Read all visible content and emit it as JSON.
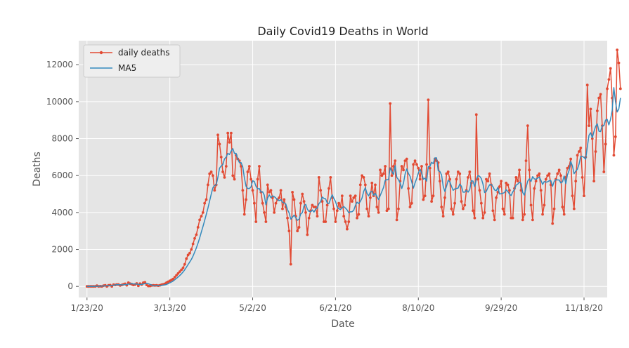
{
  "chart_data": {
    "type": "line",
    "title": "Daily Covid19 Deaths in World",
    "xlabel": "Date",
    "ylabel": "Deaths",
    "x_ticks": [
      "1/23/20",
      "3/13/20",
      "5/2/20",
      "6/21/20",
      "8/10/20",
      "9/29/20",
      "11/18/20"
    ],
    "y_ticks": [
      0,
      2000,
      4000,
      6000,
      8000,
      10000,
      12000
    ],
    "xlim": [
      "1/18/20",
      "12/2/20"
    ],
    "ylim": [
      -600,
      13300
    ],
    "grid": true,
    "legend_position": "top-left",
    "start_date": "1/23/20",
    "series": [
      {
        "name": "daily deaths",
        "color": "#e24a33",
        "marker": "dot",
        "values": [
          0,
          0,
          0,
          0,
          0,
          0,
          40,
          0,
          10,
          0,
          40,
          60,
          0,
          60,
          70,
          0,
          90,
          80,
          100,
          100,
          50,
          80,
          110,
          140,
          60,
          200,
          150,
          120,
          80,
          100,
          160,
          30,
          150,
          100,
          200,
          220,
          80,
          20,
          20,
          50,
          60,
          50,
          60,
          40,
          60,
          90,
          110,
          140,
          200,
          250,
          300,
          350,
          400,
          500,
          600,
          700,
          800,
          900,
          1000,
          1200,
          1500,
          1700,
          1800,
          2000,
          2300,
          2600,
          2800,
          3200,
          3600,
          3800,
          4000,
          4500,
          4700,
          5500,
          6100,
          6200,
          6000,
          5200,
          5500,
          8200,
          7700,
          7000,
          6200,
          5900,
          6500,
          8300,
          7800,
          8300,
          6000,
          5800,
          7100,
          6900,
          6800,
          6500,
          5200,
          3900,
          4700,
          6200,
          6500,
          5800,
          5200,
          4500,
          3500,
          5800,
          6500,
          5100,
          4500,
          4000,
          3500,
          5500,
          5100,
          5200,
          4800,
          4000,
          4500,
          4700,
          4800,
          5200,
          4200,
          4700,
          4300,
          3700,
          3000,
          1200,
          5100,
          4700,
          3800,
          3000,
          3200,
          4500,
          5000,
          4600,
          4000,
          2800,
          3700,
          4100,
          4400,
          4300,
          4300,
          3800,
          5900,
          5200,
          4600,
          3500,
          3500,
          4400,
          5300,
          5900,
          4800,
          4200,
          3500,
          4100,
          4500,
          4300,
          4900,
          3800,
          3500,
          3100,
          3500,
          4900,
          4600,
          4800,
          4900,
          3700,
          3900,
          5500,
          6000,
          5900,
          5500,
          4200,
          3800,
          4800,
          5600,
          4900,
          5500,
          4300,
          4000,
          6300,
          6000,
          6100,
          6500,
          4100,
          4200,
          9900,
          6000,
          6500,
          6800,
          3600,
          4200,
          5700,
          6500,
          6300,
          6800,
          6900,
          5300,
          4300,
          4500,
          6600,
          6800,
          6600,
          6400,
          5800,
          6500,
          4700,
          4900,
          6600,
          10100,
          6400,
          4600,
          4900,
          6900,
          6800,
          6700,
          5700,
          4300,
          3800,
          4800,
          6100,
          6200,
          5800,
          4200,
          3900,
          4500,
          5800,
          6200,
          6100,
          4600,
          4200,
          4400,
          5200,
          5900,
          6200,
          5600,
          4100,
          3700,
          9300,
          5800,
          5200,
          4500,
          3700,
          4000,
          5800,
          5700,
          6100,
          5500,
          4100,
          3600,
          4800,
          5100,
          5400,
          5700,
          4200,
          3900,
          5600,
          5500,
          5200,
          3700,
          3700,
          5300,
          5900,
          5700,
          6300,
          5200,
          3600,
          3900,
          6800,
          8700,
          6300,
          4400,
          3600,
          5300,
          5700,
          6000,
          6100,
          5200,
          3900,
          4400,
          5800,
          6000,
          6100,
          5500,
          3400,
          4200,
          5800,
          6100,
          6300,
          6000,
          4300,
          3900,
          5900,
          6400,
          6500,
          6900,
          4900,
          4200,
          5700,
          7100,
          7300,
          7500,
          5900,
          4900,
          7000,
          10900,
          8700,
          9600,
          8000,
          5700,
          7300,
          9500,
          10200,
          10400,
          8700,
          6200,
          7700,
          10700,
          11200,
          11800,
          10200,
          7100,
          8100,
          12800,
          12100,
          10700
        ]
      },
      {
        "name": "MA5",
        "color": "#348abd",
        "marker": "none",
        "values": [
          0,
          0,
          0,
          0,
          0,
          8,
          10,
          10,
          10,
          18,
          30,
          22,
          34,
          46,
          38,
          56,
          64,
          80,
          94,
          92,
          84,
          84,
          86,
          98,
          104,
          126,
          138,
          146,
          134,
          130,
          130,
          110,
          98,
          108,
          128,
          150,
          158,
          144,
          108,
          78,
          46,
          40,
          48,
          52,
          54,
          60,
          72,
          84,
          108,
          146,
          194,
          240,
          290,
          360,
          432,
          510,
          590,
          680,
          780,
          900,
          1040,
          1180,
          1320,
          1460,
          1640,
          1860,
          2080,
          2340,
          2620,
          2940,
          3240,
          3560,
          3900,
          4240,
          4620,
          5000,
          5340,
          5460,
          5500,
          5900,
          6400,
          6520,
          6600,
          6900,
          7000,
          7200,
          7140,
          7320,
          7460,
          7200,
          7200,
          6900,
          6700,
          6700,
          6480,
          5880,
          5420,
          5300,
          5300,
          5380,
          5720,
          5680,
          5420,
          5280,
          5300,
          5100,
          5120,
          4940,
          4420,
          4780,
          4960,
          4800,
          4900,
          4860,
          4780,
          4700,
          4640,
          4700,
          4560,
          4520,
          4460,
          4160,
          3980,
          3640,
          3740,
          3860,
          3720,
          3580,
          3640,
          3920,
          4000,
          4360,
          4440,
          4180,
          4060,
          4040,
          4140,
          4020,
          4180,
          4240,
          4480,
          4580,
          4840,
          4760,
          4740,
          4520,
          4480,
          4720,
          4960,
          4760,
          4600,
          4300,
          4200,
          4160,
          4260,
          4320,
          4240,
          4140,
          3980,
          4040,
          4040,
          4120,
          4380,
          4560,
          4480,
          4600,
          4780,
          5140,
          5340,
          5040,
          4900,
          5100,
          5160,
          4920,
          5040,
          4860,
          4700,
          4920,
          5140,
          5360,
          5740,
          5780,
          5780,
          6420,
          6220,
          6060,
          6540,
          5900,
          5780,
          5600,
          5300,
          5580,
          6080,
          6360,
          6120,
          5960,
          5660,
          5320,
          5600,
          5840,
          6140,
          6340,
          6140,
          5800,
          5860,
          5700,
          6480,
          6500,
          6720,
          6640,
          6960,
          6960,
          6260,
          6220,
          6040,
          5420,
          5140,
          5420,
          5740,
          5660,
          5420,
          5200,
          5280,
          5300,
          5320,
          5540,
          5420,
          5100,
          5100,
          5200,
          5100,
          5240,
          5720,
          5700,
          5400,
          5800,
          6000,
          5960,
          5840,
          5540,
          5080,
          5140,
          5340,
          5500,
          5520,
          5400,
          5220,
          5180,
          5360,
          5000,
          5020,
          5040,
          5080,
          5240,
          5140,
          5000,
          4920,
          5120,
          5240,
          5480,
          5540,
          5640,
          5580,
          5080,
          4940,
          5340,
          5700,
          5820,
          5680,
          5940,
          5820,
          5800,
          5860,
          5920,
          5740,
          5520,
          5680,
          5640,
          5660,
          5720,
          5720,
          5420,
          5680,
          5780,
          5760,
          5760,
          5600,
          5660,
          5980,
          5560,
          6040,
          6280,
          6760,
          6520,
          6100,
          6240,
          6340,
          6620,
          7040,
          7040,
          6980,
          6880,
          7560,
          8180,
          8320,
          8040,
          8380,
          8660,
          8800,
          8400,
          8380,
          8700,
          8700,
          9000,
          9040,
          8740,
          9040,
          9520,
          10760,
          10000,
          9440,
          9600,
          10200
        ]
      }
    ]
  }
}
